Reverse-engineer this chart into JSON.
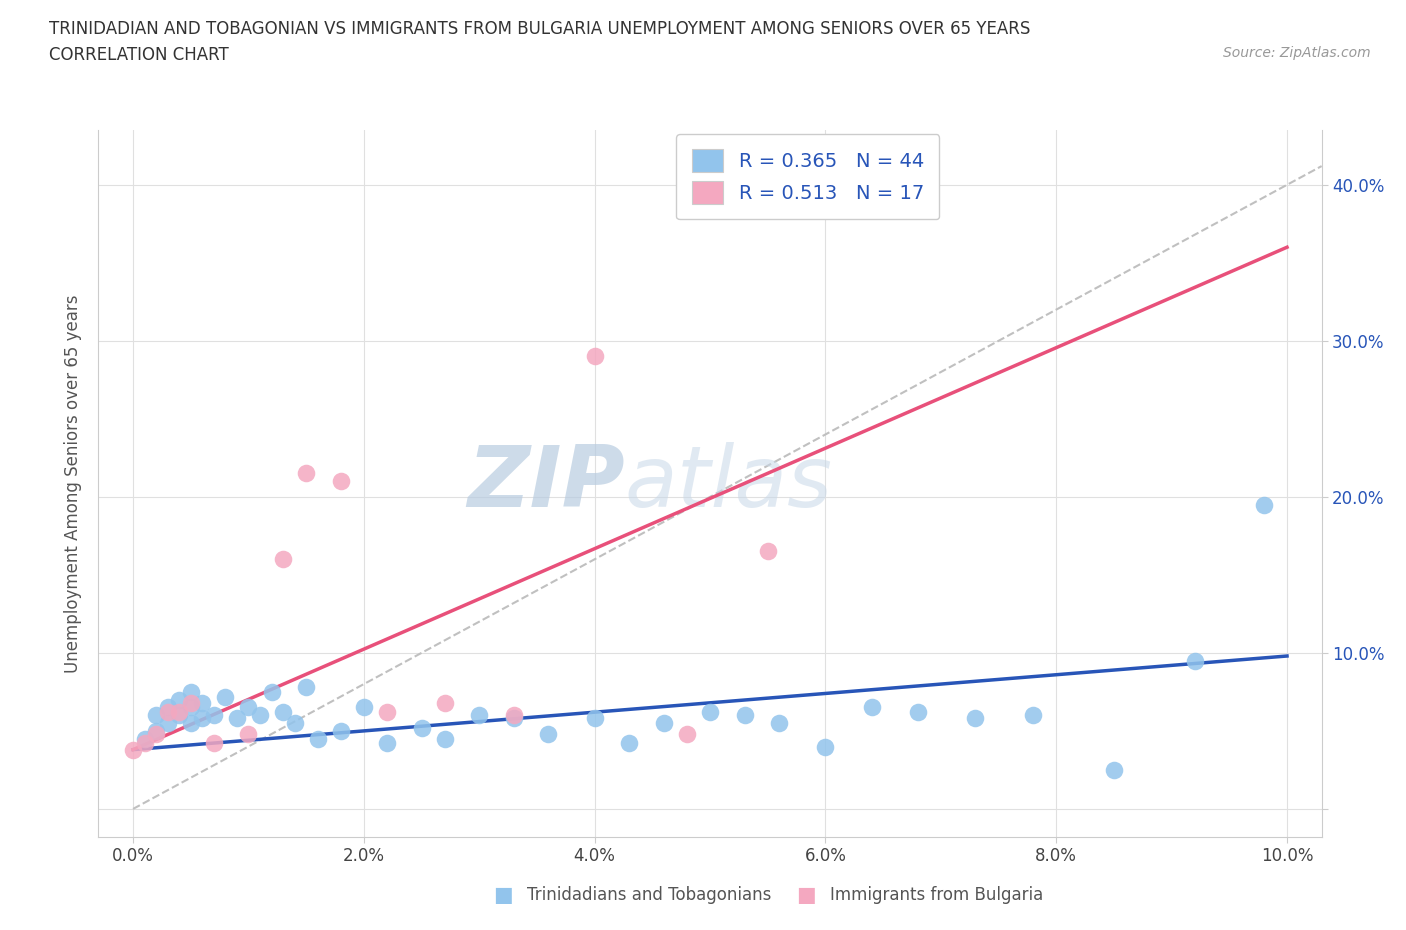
{
  "title_line1": "TRINIDADIAN AND TOBAGONIAN VS IMMIGRANTS FROM BULGARIA UNEMPLOYMENT AMONG SENIORS OVER 65 YEARS",
  "title_line2": "CORRELATION CHART",
  "source_text": "Source: ZipAtlas.com",
  "ylabel": "Unemployment Among Seniors over 65 years",
  "watermark_zip": "ZIP",
  "watermark_atlas": "atlas",
  "legend_label1": "Trinidadians and Tobagonians",
  "legend_label2": "Immigrants from Bulgaria",
  "R1": "0.365",
  "N1": "44",
  "R2": "0.513",
  "N2": "17",
  "color1": "#92c4ec",
  "color2": "#f4a8c0",
  "trendline1_color": "#2855b8",
  "trendline2_color": "#e8507a",
  "trendline_ref_color": "#c0c0c0",
  "bg_color": "#ffffff",
  "grid_color": "#e0e0e0",
  "xlim": [
    -0.003,
    0.103
  ],
  "ylim": [
    -0.018,
    0.435
  ],
  "xtick_vals": [
    0.0,
    0.02,
    0.04,
    0.06,
    0.08,
    0.1
  ],
  "ytick_vals": [
    0.0,
    0.1,
    0.2,
    0.3,
    0.4
  ],
  "blue_x": [
    0.001,
    0.002,
    0.002,
    0.003,
    0.003,
    0.004,
    0.004,
    0.005,
    0.005,
    0.005,
    0.006,
    0.006,
    0.007,
    0.008,
    0.009,
    0.01,
    0.011,
    0.012,
    0.013,
    0.014,
    0.015,
    0.016,
    0.018,
    0.02,
    0.022,
    0.025,
    0.027,
    0.03,
    0.033,
    0.036,
    0.04,
    0.043,
    0.046,
    0.05,
    0.053,
    0.056,
    0.06,
    0.064,
    0.068,
    0.073,
    0.078,
    0.085,
    0.092,
    0.098
  ],
  "blue_y": [
    0.045,
    0.05,
    0.06,
    0.055,
    0.065,
    0.06,
    0.07,
    0.055,
    0.065,
    0.075,
    0.058,
    0.068,
    0.06,
    0.072,
    0.058,
    0.065,
    0.06,
    0.075,
    0.062,
    0.055,
    0.078,
    0.045,
    0.05,
    0.065,
    0.042,
    0.052,
    0.045,
    0.06,
    0.058,
    0.048,
    0.058,
    0.042,
    0.055,
    0.062,
    0.06,
    0.055,
    0.04,
    0.065,
    0.062,
    0.058,
    0.06,
    0.025,
    0.095,
    0.195
  ],
  "pink_x": [
    0.0,
    0.001,
    0.002,
    0.003,
    0.004,
    0.005,
    0.007,
    0.01,
    0.013,
    0.015,
    0.018,
    0.022,
    0.027,
    0.033,
    0.04,
    0.048,
    0.055
  ],
  "pink_y": [
    0.038,
    0.042,
    0.048,
    0.062,
    0.062,
    0.068,
    0.042,
    0.048,
    0.16,
    0.215,
    0.21,
    0.062,
    0.068,
    0.06,
    0.29,
    0.048,
    0.165
  ],
  "trendline1_x0": 0.0,
  "trendline1_y0": 0.038,
  "trendline1_x1": 0.1,
  "trendline1_y1": 0.098,
  "trendline2_x0": 0.0,
  "trendline2_y0": 0.038,
  "trendline2_x1": 0.1,
  "trendline2_y1": 0.36
}
